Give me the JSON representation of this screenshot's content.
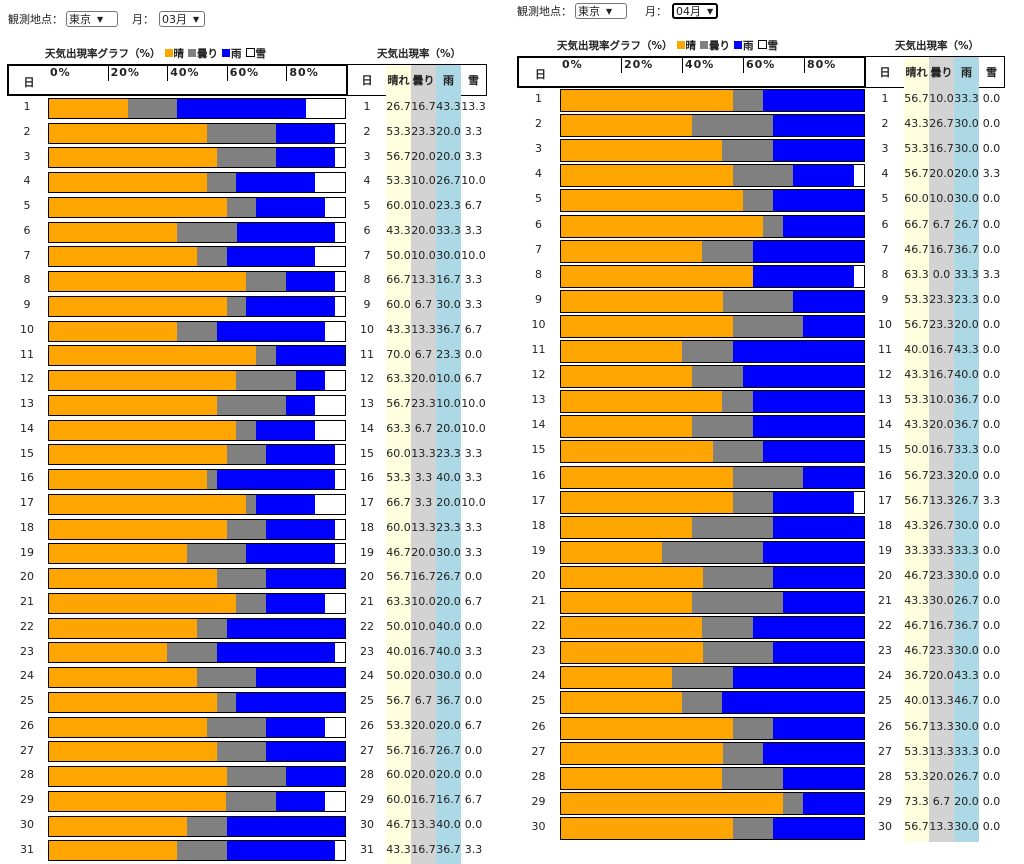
{
  "controls": {
    "location_label": "観測地点：",
    "month_label": "月："
  },
  "legend": {
    "sunny": "晴",
    "cloudy": "曇り",
    "rain": "雨",
    "snow": "雪"
  },
  "colors": {
    "sunny": "#ffa500",
    "cloudy": "#808080",
    "rain": "#0000ff",
    "snow": "#ffffff",
    "col_sunny": "#ffffe0",
    "col_cloudy": "#d3d3d3",
    "col_rain": "#add8e6"
  },
  "graph_title": "天気出現率グラフ（%）",
  "table_title": "天気出現率（%）",
  "axis_ticks": [
    "0%",
    "20%",
    "40%",
    "60%",
    "80%"
  ],
  "headers": {
    "day": "日",
    "sunny": "晴れ",
    "cloudy": "曇り",
    "rain": "雨",
    "snow": "雪"
  },
  "panels": [
    {
      "location": "東京",
      "month": "03月",
      "rows": [
        [
          "1",
          "26.7",
          "16.7",
          "43.3",
          "13.3"
        ],
        [
          "2",
          "53.3",
          "23.3",
          "20.0",
          "3.3"
        ],
        [
          "3",
          "56.7",
          "20.0",
          "20.0",
          "3.3"
        ],
        [
          "4",
          "53.3",
          "10.0",
          "26.7",
          "10.0"
        ],
        [
          "5",
          "60.0",
          "10.0",
          "23.3",
          "6.7"
        ],
        [
          "6",
          "43.3",
          "20.0",
          "33.3",
          "3.3"
        ],
        [
          "7",
          "50.0",
          "10.0",
          "30.0",
          "10.0"
        ],
        [
          "8",
          "66.7",
          "13.3",
          "16.7",
          "3.3"
        ],
        [
          "9",
          "60.0",
          "6.7",
          "30.0",
          "3.3"
        ],
        [
          "10",
          "43.3",
          "13.3",
          "36.7",
          "6.7"
        ],
        [
          "11",
          "70.0",
          "6.7",
          "23.3",
          "0.0"
        ],
        [
          "12",
          "63.3",
          "20.0",
          "10.0",
          "6.7"
        ],
        [
          "13",
          "56.7",
          "23.3",
          "10.0",
          "10.0"
        ],
        [
          "14",
          "63.3",
          "6.7",
          "20.0",
          "10.0"
        ],
        [
          "15",
          "60.0",
          "13.3",
          "23.3",
          "3.3"
        ],
        [
          "16",
          "53.3",
          "3.3",
          "40.0",
          "3.3"
        ],
        [
          "17",
          "66.7",
          "3.3",
          "20.0",
          "10.0"
        ],
        [
          "18",
          "60.0",
          "13.3",
          "23.3",
          "3.3"
        ],
        [
          "19",
          "46.7",
          "20.0",
          "30.0",
          "3.3"
        ],
        [
          "20",
          "56.7",
          "16.7",
          "26.7",
          "0.0"
        ],
        [
          "21",
          "63.3",
          "10.0",
          "20.0",
          "6.7"
        ],
        [
          "22",
          "50.0",
          "10.0",
          "40.0",
          "0.0"
        ],
        [
          "23",
          "40.0",
          "16.7",
          "40.0",
          "3.3"
        ],
        [
          "24",
          "50.0",
          "20.0",
          "30.0",
          "0.0"
        ],
        [
          "25",
          "56.7",
          "6.7",
          "36.7",
          "0.0"
        ],
        [
          "26",
          "53.3",
          "20.0",
          "20.0",
          "6.7"
        ],
        [
          "27",
          "56.7",
          "16.7",
          "26.7",
          "0.0"
        ],
        [
          "28",
          "60.0",
          "20.0",
          "20.0",
          "0.0"
        ],
        [
          "29",
          "60.0",
          "16.7",
          "16.7",
          "6.7"
        ],
        [
          "30",
          "46.7",
          "13.3",
          "40.0",
          "0.0"
        ],
        [
          "31",
          "43.3",
          "16.7",
          "36.7",
          "3.3"
        ]
      ]
    },
    {
      "location": "東京",
      "month": "04月",
      "rows": [
        [
          "1",
          "56.7",
          "10.0",
          "33.3",
          "0.0"
        ],
        [
          "2",
          "43.3",
          "26.7",
          "30.0",
          "0.0"
        ],
        [
          "3",
          "53.3",
          "16.7",
          "30.0",
          "0.0"
        ],
        [
          "4",
          "56.7",
          "20.0",
          "20.0",
          "3.3"
        ],
        [
          "5",
          "60.0",
          "10.0",
          "30.0",
          "0.0"
        ],
        [
          "6",
          "66.7",
          "6.7",
          "26.7",
          "0.0"
        ],
        [
          "7",
          "46.7",
          "16.7",
          "36.7",
          "0.0"
        ],
        [
          "8",
          "63.3",
          "0.0",
          "33.3",
          "3.3"
        ],
        [
          "9",
          "53.3",
          "23.3",
          "23.3",
          "0.0"
        ],
        [
          "10",
          "56.7",
          "23.3",
          "20.0",
          "0.0"
        ],
        [
          "11",
          "40.0",
          "16.7",
          "43.3",
          "0.0"
        ],
        [
          "12",
          "43.3",
          "16.7",
          "40.0",
          "0.0"
        ],
        [
          "13",
          "53.3",
          "10.0",
          "36.7",
          "0.0"
        ],
        [
          "14",
          "43.3",
          "20.0",
          "36.7",
          "0.0"
        ],
        [
          "15",
          "50.0",
          "16.7",
          "33.3",
          "0.0"
        ],
        [
          "16",
          "56.7",
          "23.3",
          "20.0",
          "0.0"
        ],
        [
          "17",
          "56.7",
          "13.3",
          "26.7",
          "3.3"
        ],
        [
          "18",
          "43.3",
          "26.7",
          "30.0",
          "0.0"
        ],
        [
          "19",
          "33.3",
          "33.3",
          "33.3",
          "0.0"
        ],
        [
          "20",
          "46.7",
          "23.3",
          "30.0",
          "0.0"
        ],
        [
          "21",
          "43.3",
          "30.0",
          "26.7",
          "0.0"
        ],
        [
          "22",
          "46.7",
          "16.7",
          "36.7",
          "0.0"
        ],
        [
          "23",
          "46.7",
          "23.3",
          "30.0",
          "0.0"
        ],
        [
          "24",
          "36.7",
          "20.0",
          "43.3",
          "0.0"
        ],
        [
          "25",
          "40.0",
          "13.3",
          "46.7",
          "0.0"
        ],
        [
          "26",
          "56.7",
          "13.3",
          "30.0",
          "0.0"
        ],
        [
          "27",
          "53.3",
          "13.3",
          "33.3",
          "0.0"
        ],
        [
          "28",
          "53.3",
          "20.0",
          "26.7",
          "0.0"
        ],
        [
          "29",
          "73.3",
          "6.7",
          "20.0",
          "0.0"
        ],
        [
          "30",
          "56.7",
          "13.3",
          "30.0",
          "0.0"
        ]
      ]
    }
  ]
}
